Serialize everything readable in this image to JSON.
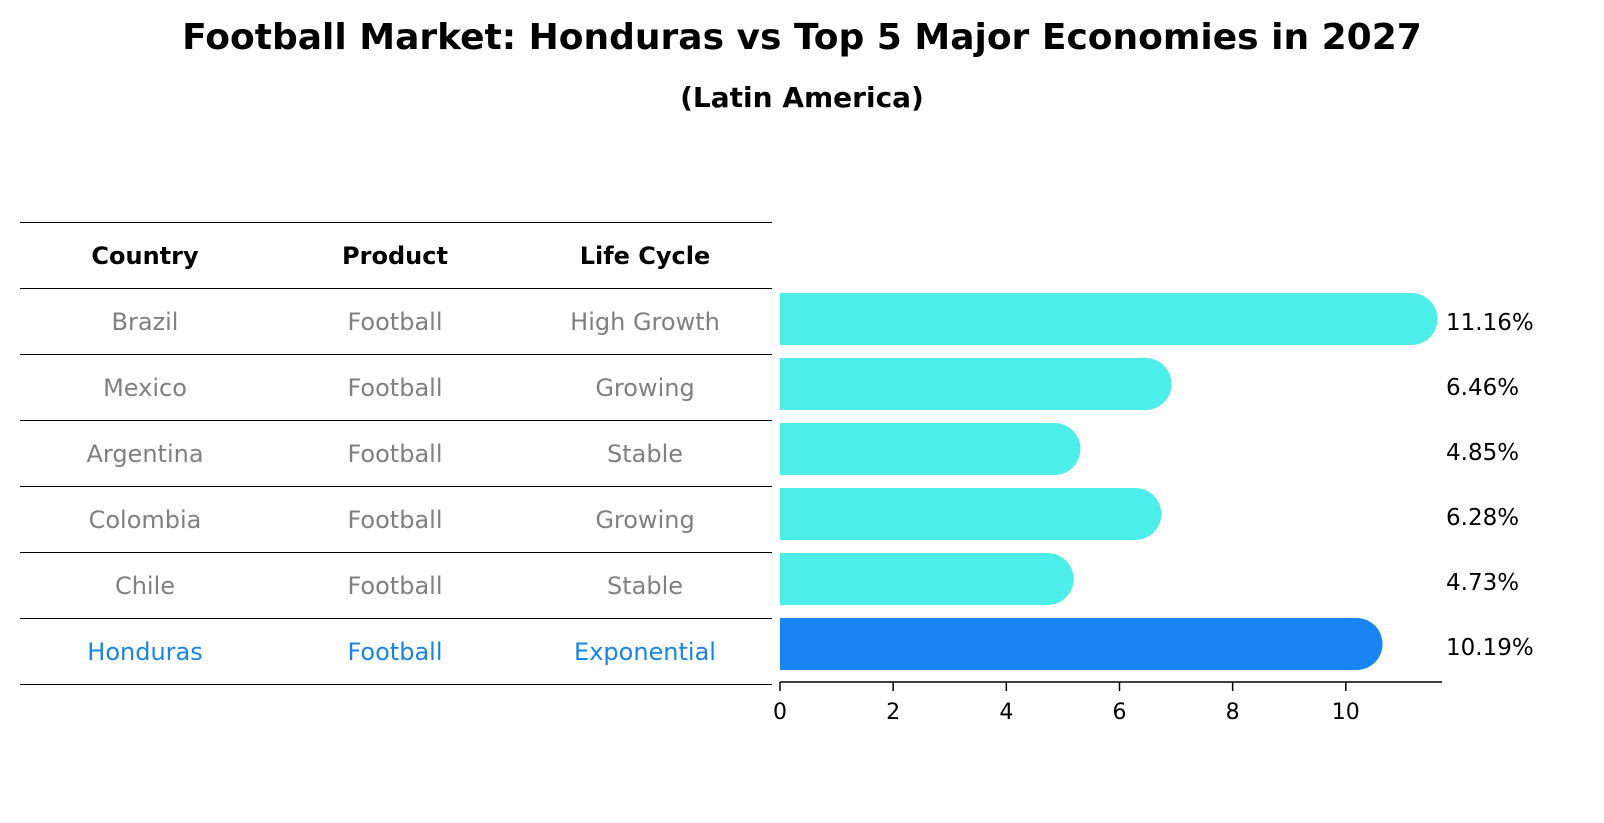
{
  "title": "Football Market: Honduras vs Top 5 Major Economies in 2027",
  "subtitle": "(Latin America)",
  "table": {
    "headers": [
      "Country",
      "Product",
      "Life Cycle"
    ],
    "rows": [
      {
        "country": "Brazil",
        "product": "Football",
        "life_cycle": "High Growth"
      },
      {
        "country": "Mexico",
        "product": "Football",
        "life_cycle": "Growing"
      },
      {
        "country": "Argentina",
        "product": "Football",
        "life_cycle": "Stable"
      },
      {
        "country": "Colombia",
        "product": "Football",
        "life_cycle": "Growing"
      },
      {
        "country": "Chile",
        "product": "Football",
        "life_cycle": "Stable"
      },
      {
        "country": "Honduras",
        "product": "Football",
        "life_cycle": "Exponential"
      }
    ]
  },
  "chart_data": {
    "type": "bar",
    "orientation": "horizontal",
    "categories": [
      "Brazil",
      "Mexico",
      "Argentina",
      "Colombia",
      "Chile",
      "Honduras"
    ],
    "values": [
      11.16,
      6.46,
      4.85,
      6.28,
      4.73,
      10.19
    ],
    "value_labels": [
      "11.16%",
      "6.46%",
      "4.85%",
      "6.28%",
      "4.73%",
      "10.19%"
    ],
    "xticks": [
      0,
      2,
      4,
      6,
      8,
      10
    ],
    "xtick_labels": [
      "0",
      "2",
      "4",
      "6",
      "8",
      "10"
    ],
    "xlim": [
      0,
      11.7
    ],
    "highlight": "Honduras",
    "bar_color": "#4deeea",
    "highlight_color": "#1a85f2",
    "grid": false
  },
  "colors": {
    "row_text": "#808080",
    "highlight_text": "#1a85e0"
  }
}
